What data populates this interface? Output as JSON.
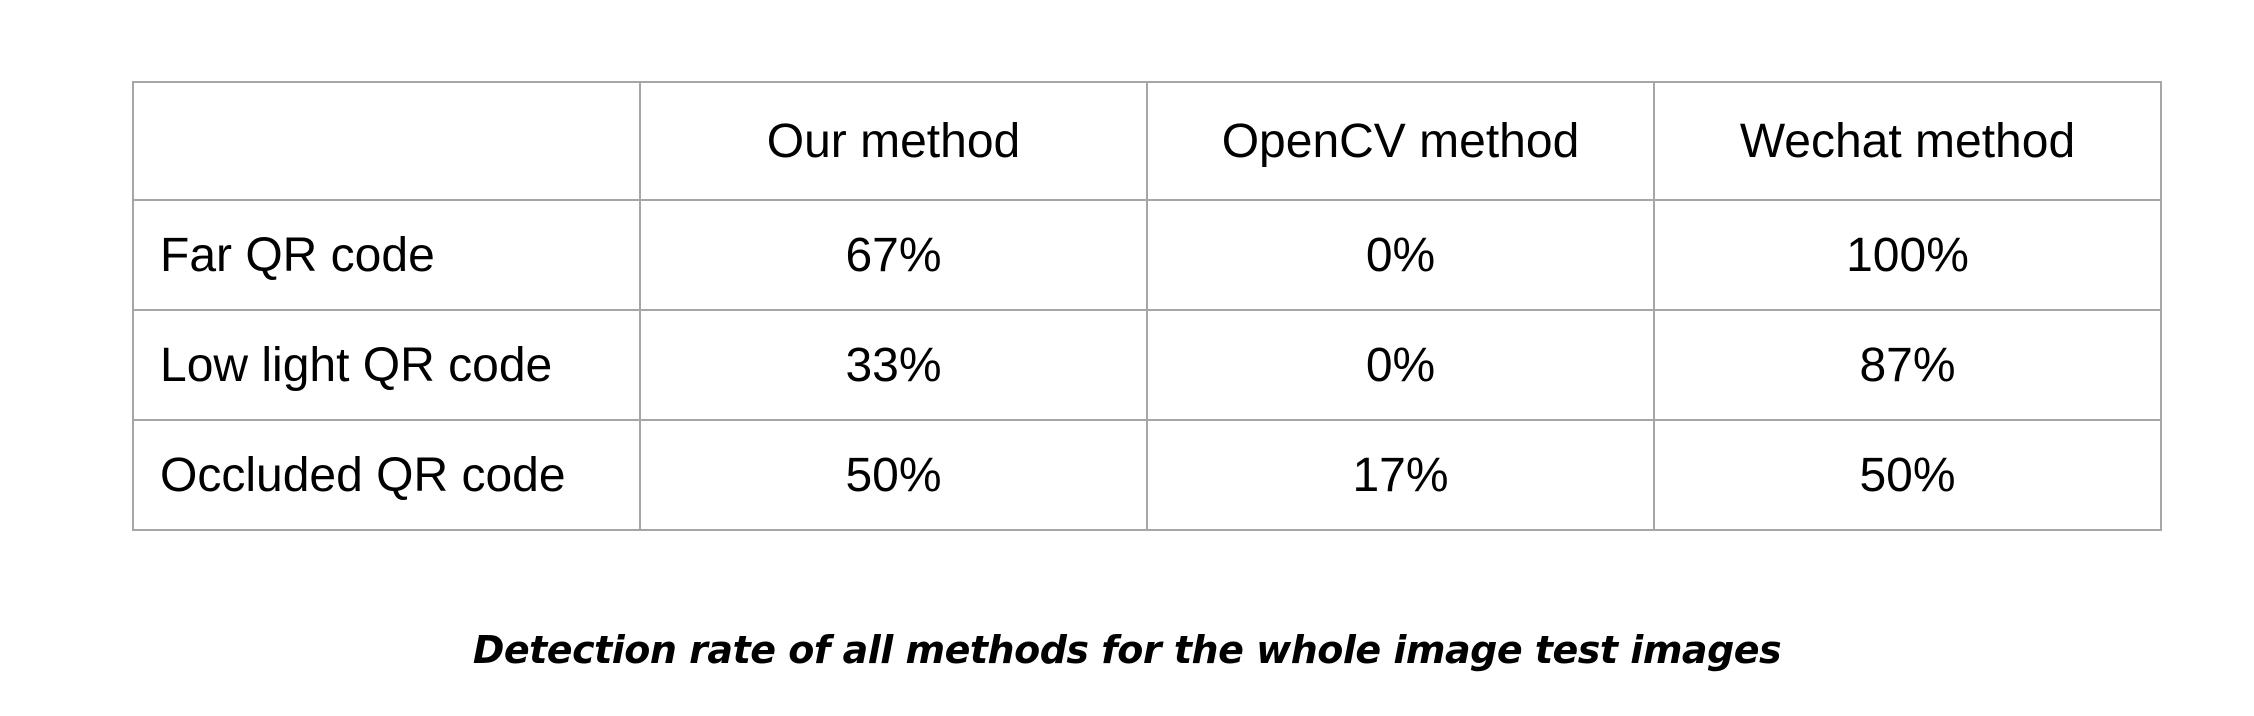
{
  "table": {
    "columns": [
      "",
      "Our method",
      "OpenCV method",
      "Wechat method"
    ],
    "rows": [
      {
        "label": "Far QR code",
        "values": [
          "67%",
          "0%",
          "100%"
        ]
      },
      {
        "label": "Low light QR code",
        "values": [
          "33%",
          "0%",
          "87%"
        ]
      },
      {
        "label": "Occluded QR code",
        "values": [
          "50%",
          "17%",
          "50%"
        ]
      }
    ]
  },
  "caption": "Detection rate of all methods for the whole image test images"
}
